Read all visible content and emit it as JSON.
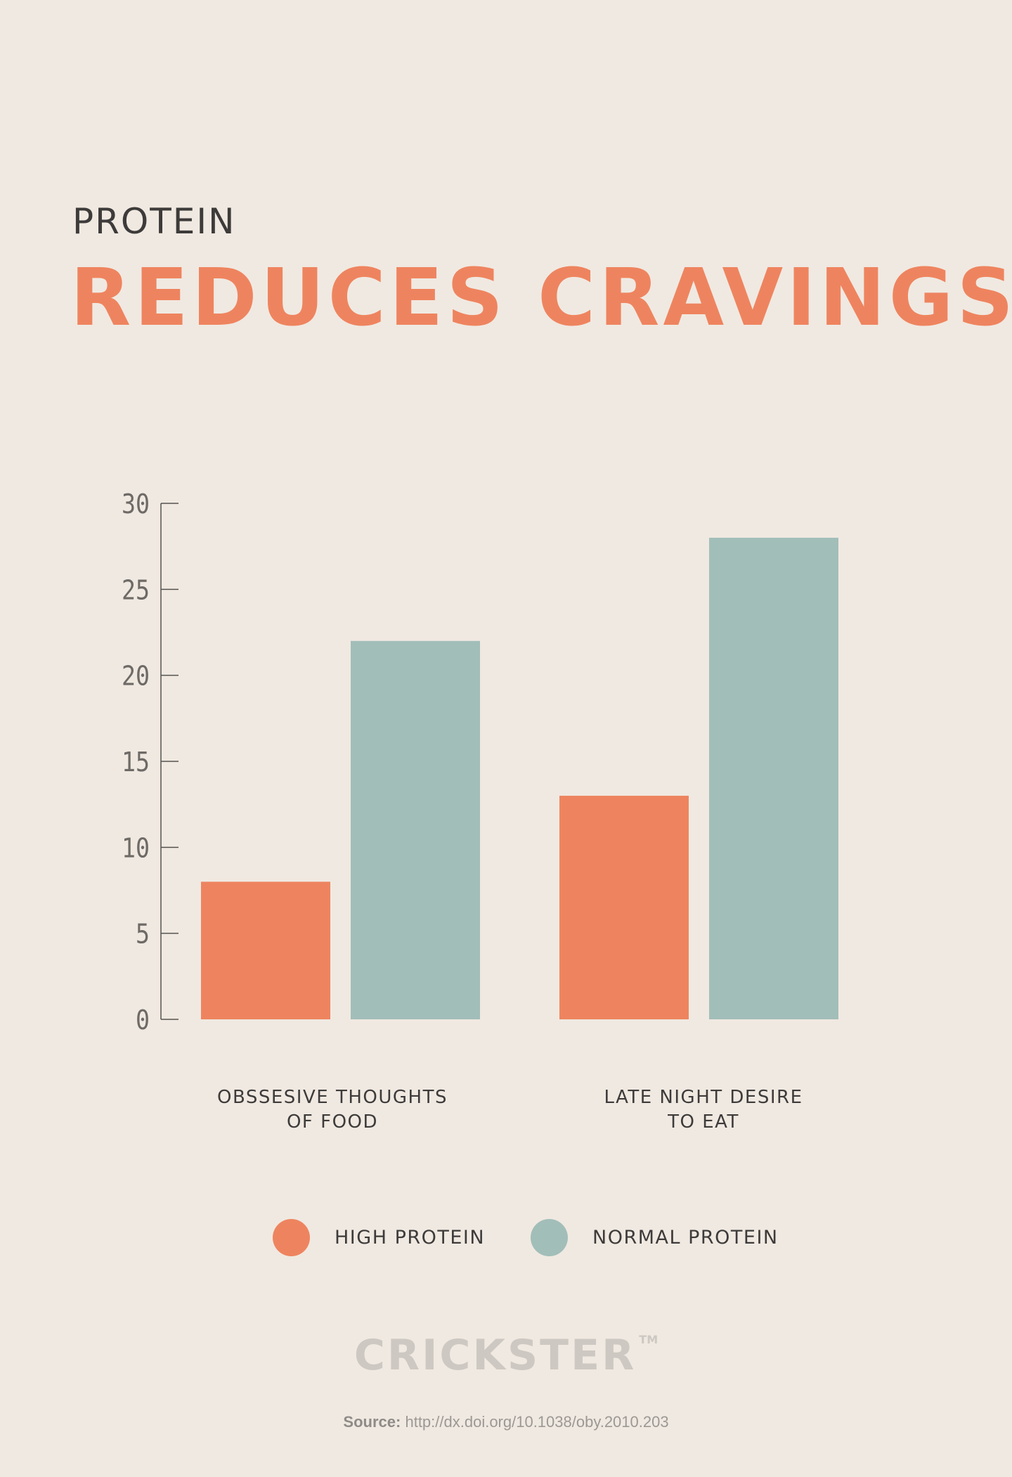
{
  "header": {
    "kicker": "PROTEIN",
    "title": "REDUCES CRAVINGS"
  },
  "chart_data": {
    "type": "bar",
    "categories": [
      "OBSSESIVE THOUGHTS\nOF FOOD",
      "LATE NIGHT DESIRE\nTO EAT"
    ],
    "series": [
      {
        "name": "HIGH PROTEIN",
        "color": "#ee845f",
        "values": [
          8,
          13
        ]
      },
      {
        "name": "NORMAL PROTEIN",
        "color": "#a2beb9",
        "values": [
          22,
          28
        ]
      }
    ],
    "ylim": [
      0,
      30
    ],
    "yticks": [
      0,
      5,
      10,
      15,
      20,
      25,
      30
    ],
    "grid": false,
    "legend_position": "bottom"
  },
  "footer": {
    "logo": "CRICKSTER",
    "trademark": "TM",
    "source_label": "Source:",
    "source_url": "http://dx.doi.org/10.1038/oby.2010.203"
  },
  "colors": {
    "background": "#f0e9e1",
    "accent": "#ee845f",
    "secondary": "#a2beb9",
    "text": "#3d3b3a"
  }
}
